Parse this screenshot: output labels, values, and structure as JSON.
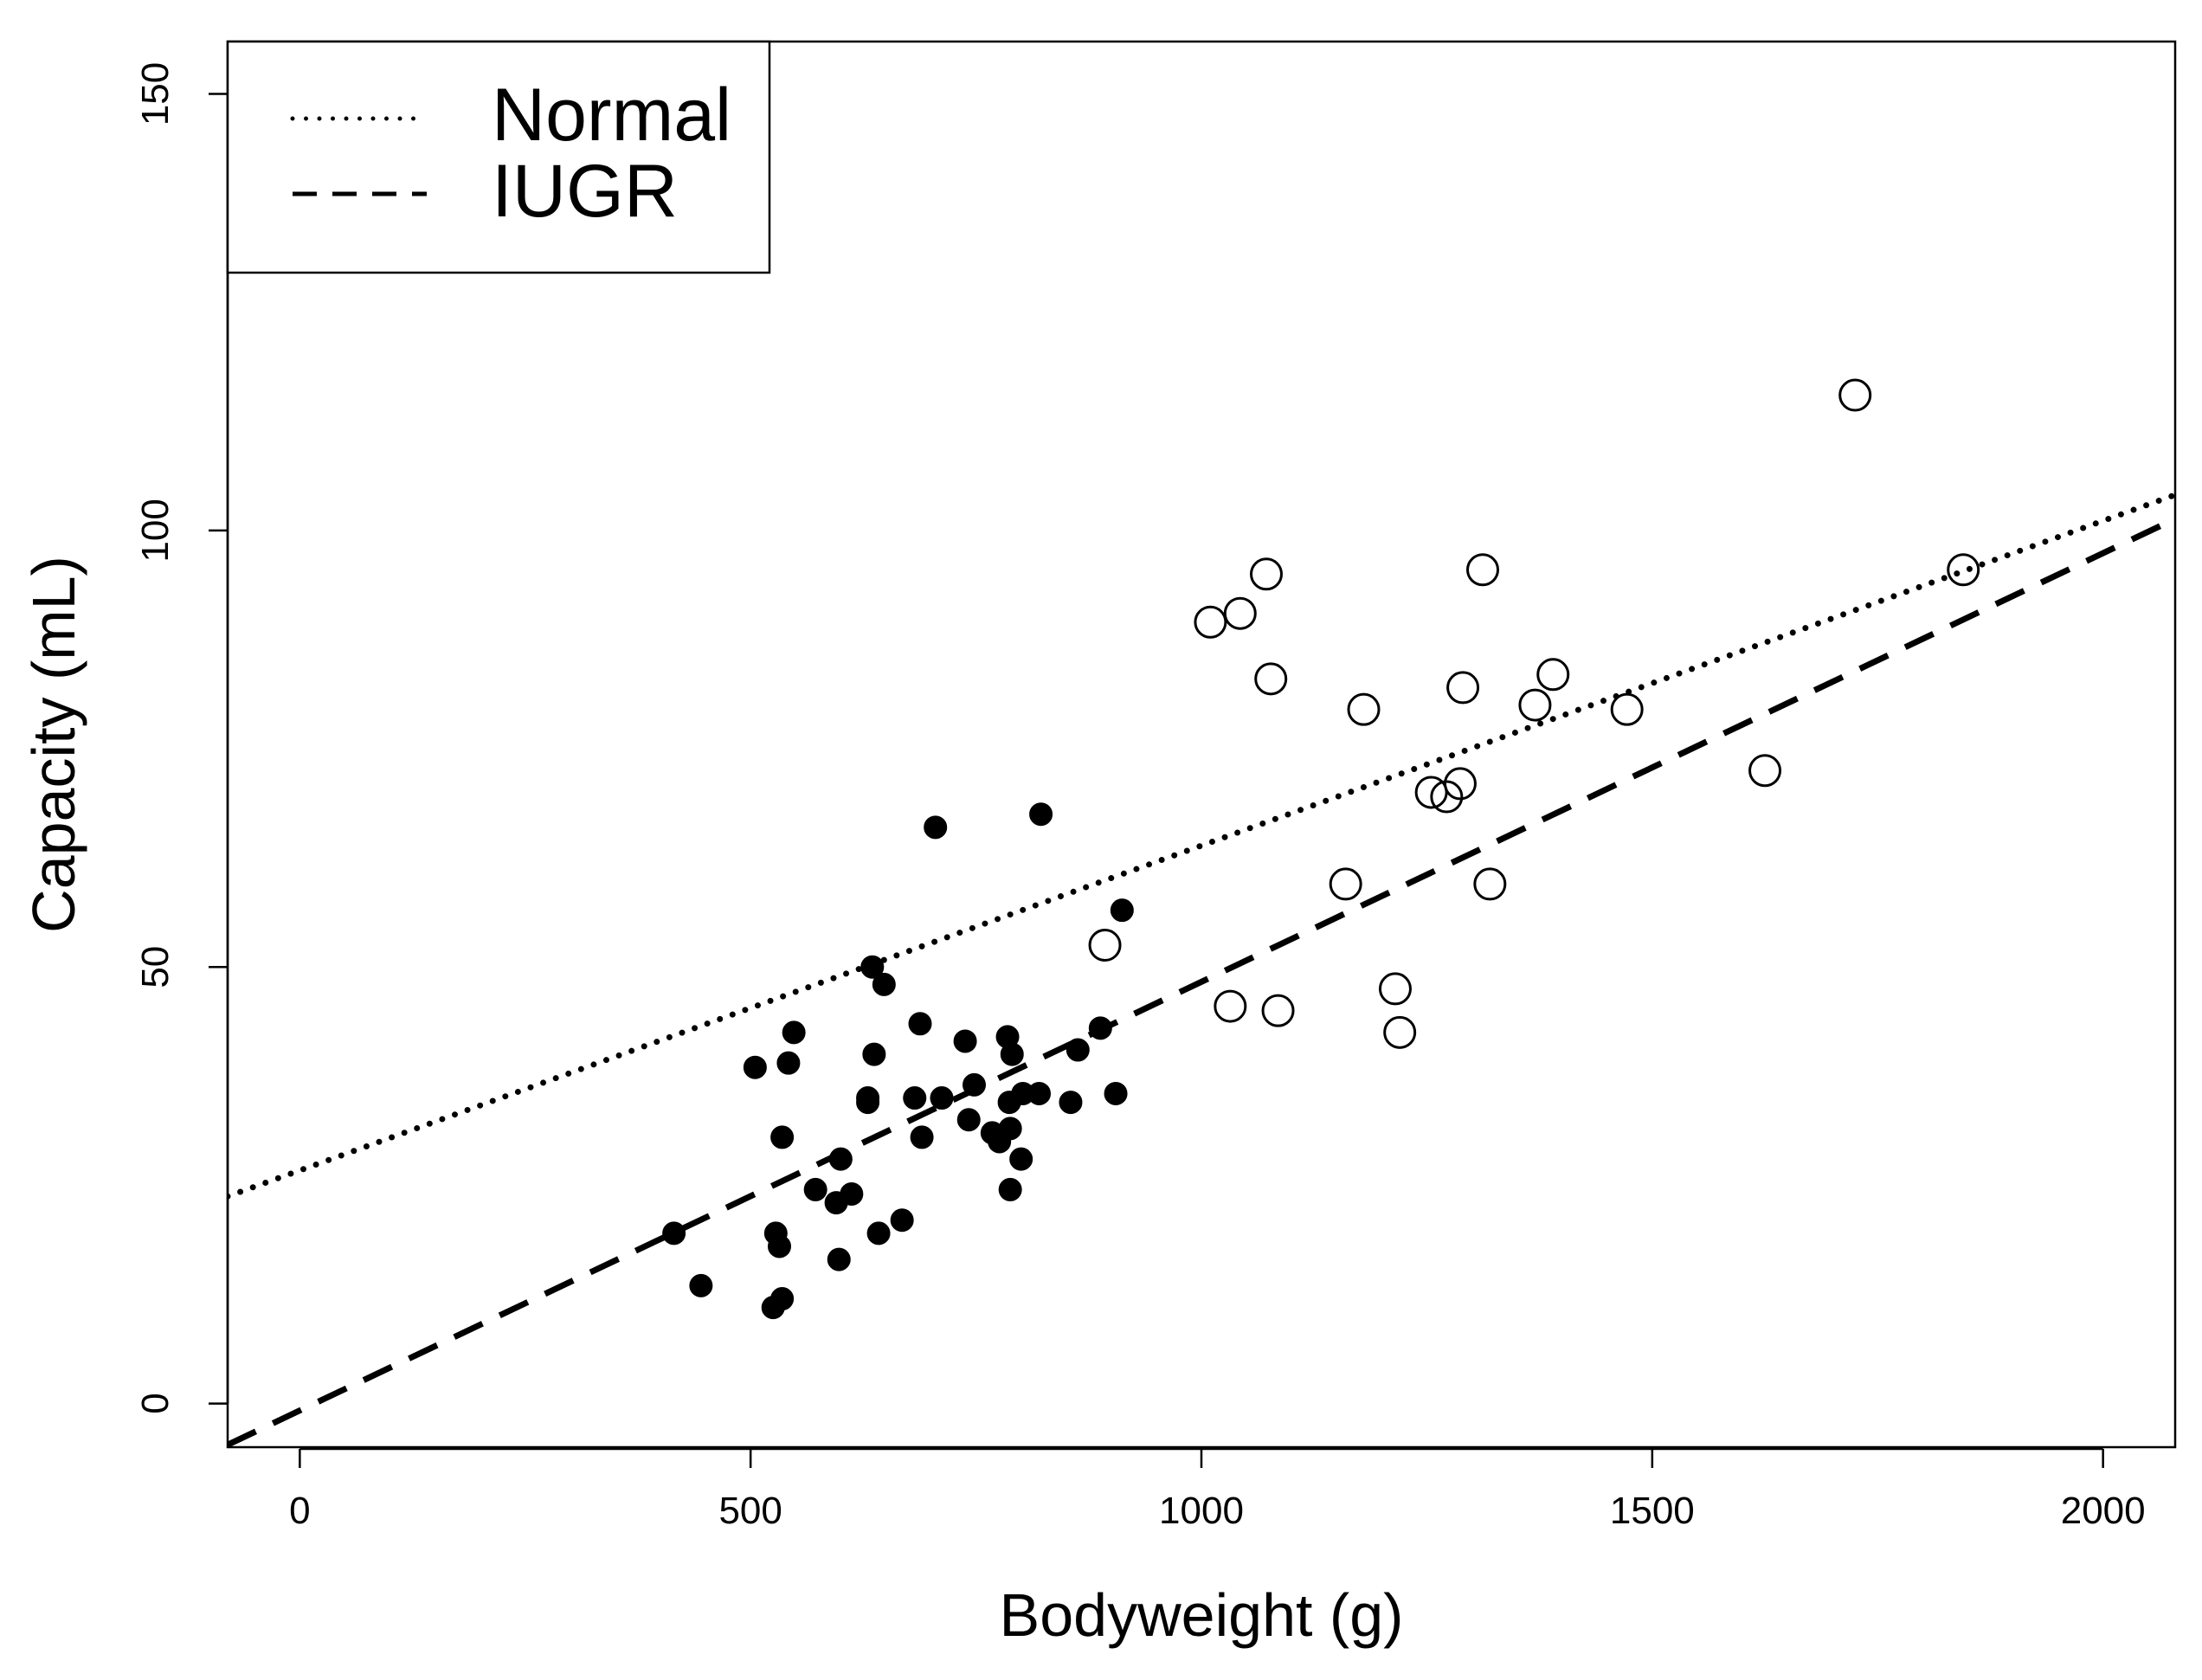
{
  "chart_data": {
    "type": "scatter",
    "xlabel": "Bodyweight (g)",
    "ylabel": "Capacity (mL)",
    "xlim": [
      -80,
      2080
    ],
    "ylim": [
      -5,
      156
    ],
    "x_ticks": [
      0,
      500,
      1000,
      1500,
      2000
    ],
    "y_ticks": [
      0,
      50,
      100,
      150
    ],
    "grid": false,
    "legend": {
      "position": "top-left",
      "entries": [
        {
          "label": "Normal",
          "linestyle": "dotted"
        },
        {
          "label": "IUGR",
          "linestyle": "dashed"
        }
      ]
    },
    "series": [
      {
        "name": "IUGR",
        "marker": "filled-circle",
        "points": [
          [
            415,
            19.5
          ],
          [
            445,
            13.5
          ],
          [
            505,
            38.5
          ],
          [
            525,
            11
          ],
          [
            528,
            19.5
          ],
          [
            532,
            18
          ],
          [
            535,
            30.5
          ],
          [
            535,
            12
          ],
          [
            542,
            39
          ],
          [
            548,
            42.5
          ],
          [
            572,
            24.5
          ],
          [
            595,
            23
          ],
          [
            598,
            16.5
          ],
          [
            600,
            28
          ],
          [
            612,
            24
          ],
          [
            630,
            35
          ],
          [
            630,
            34.5
          ],
          [
            635,
            50
          ],
          [
            637,
            40
          ],
          [
            642,
            19.5
          ],
          [
            648,
            48
          ],
          [
            668,
            21
          ],
          [
            682,
            35
          ],
          [
            688,
            43.5
          ],
          [
            690,
            30.5
          ],
          [
            705,
            66
          ],
          [
            712,
            35
          ],
          [
            738,
            41.5
          ],
          [
            742,
            32.5
          ],
          [
            748,
            36.5
          ],
          [
            768,
            31
          ],
          [
            776,
            30
          ],
          [
            785,
            42
          ],
          [
            787,
            34.5
          ],
          [
            788,
            24.5
          ],
          [
            788,
            31.5
          ],
          [
            790,
            40
          ],
          [
            800,
            28
          ],
          [
            802,
            35.5
          ],
          [
            820,
            35.5
          ],
          [
            822,
            67.5
          ],
          [
            855,
            34.5
          ],
          [
            863,
            40.5
          ],
          [
            888,
            43
          ],
          [
            905,
            35.5
          ],
          [
            912,
            56.5
          ]
        ]
      },
      {
        "name": "Normal",
        "marker": "open-circle",
        "points": [
          [
            893,
            52.5
          ],
          [
            1010,
            89.5
          ],
          [
            1032,
            45.5
          ],
          [
            1043,
            90.5
          ],
          [
            1072,
            95
          ],
          [
            1077,
            83
          ],
          [
            1085,
            45
          ],
          [
            1160,
            59.5
          ],
          [
            1180,
            79.5
          ],
          [
            1215,
            47.5
          ],
          [
            1220,
            42.5
          ],
          [
            1255,
            70
          ],
          [
            1272,
            69.5
          ],
          [
            1287,
            71
          ],
          [
            1290,
            82
          ],
          [
            1312,
            95.5
          ],
          [
            1320,
            59.5
          ],
          [
            1370,
            80
          ],
          [
            1390,
            83.5
          ],
          [
            1472,
            79.5
          ],
          [
            1625,
            72.5
          ],
          [
            1725,
            115.5
          ],
          [
            1845,
            95.5
          ]
        ]
      }
    ],
    "lines": [
      {
        "name": "Normal",
        "linestyle": "dotted",
        "intercept": 26.7,
        "slope": 0.0372
      },
      {
        "name": "IUGR",
        "linestyle": "dashed",
        "intercept": -0.8,
        "slope": 0.0491
      }
    ]
  }
}
